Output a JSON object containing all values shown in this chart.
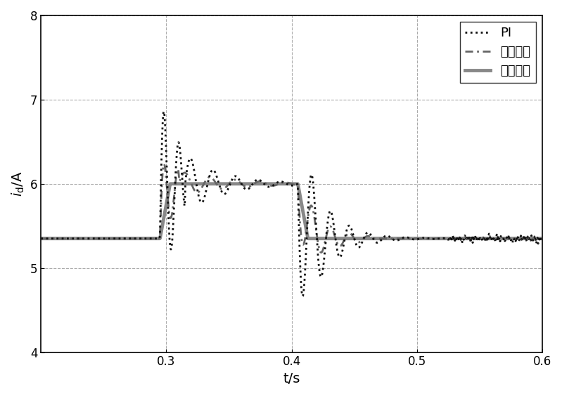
{
  "xlim": [
    0.2,
    0.6
  ],
  "ylim": [
    4,
    8
  ],
  "xticks": [
    0.3,
    0.4,
    0.5,
    0.6
  ],
  "yticks": [
    4,
    5,
    6,
    7,
    8
  ],
  "xlabel": "t/s",
  "ylabel": "i_d/A",
  "background_color": "#ffffff",
  "grid_color": "#aaaaaa",
  "legend_labels": [
    "PI",
    "线性滑模",
    "高阶滑模"
  ],
  "steady_low": 5.35,
  "steady_high": 6.0,
  "t_step1": 0.295,
  "t_step2": 0.405
}
